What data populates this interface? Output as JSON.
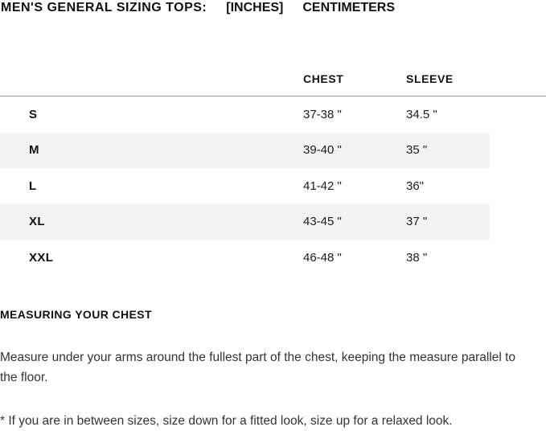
{
  "title": {
    "label": "MEN'S GENERAL SIZING TOPS:",
    "unit_selected": "[INCHES]",
    "unit_alternate": "CENTIMETERS"
  },
  "table": {
    "columns": {
      "size": "",
      "chest": "CHEST",
      "sleeve": "SLEEVE"
    },
    "rows": [
      {
        "size": "S",
        "chest": "37-38 \"",
        "sleeve": "34.5 \""
      },
      {
        "size": "M",
        "chest": "39-40 \"",
        "sleeve": "35 \""
      },
      {
        "size": "L",
        "chest": "41-42 \"",
        "sleeve": "36\""
      },
      {
        "size": "XL",
        "chest": "43-45 \"",
        "sleeve": "37 \""
      },
      {
        "size": "XXL",
        "chest": "46-48 \"",
        "sleeve": "38 \""
      }
    ]
  },
  "measuring": {
    "heading": "MEASURING YOUR CHEST",
    "body": "Measure under your arms around the fullest part of the chest, keeping the measure parallel to the floor.",
    "footnote": "* If you are in between sizes, size down for a fitted look, size up for a relaxed look."
  },
  "colors": {
    "text": "#111111",
    "body_text": "#333333",
    "row_stripe": "#f3f3f3",
    "header_rule": "#939393",
    "background": "#ffffff"
  }
}
